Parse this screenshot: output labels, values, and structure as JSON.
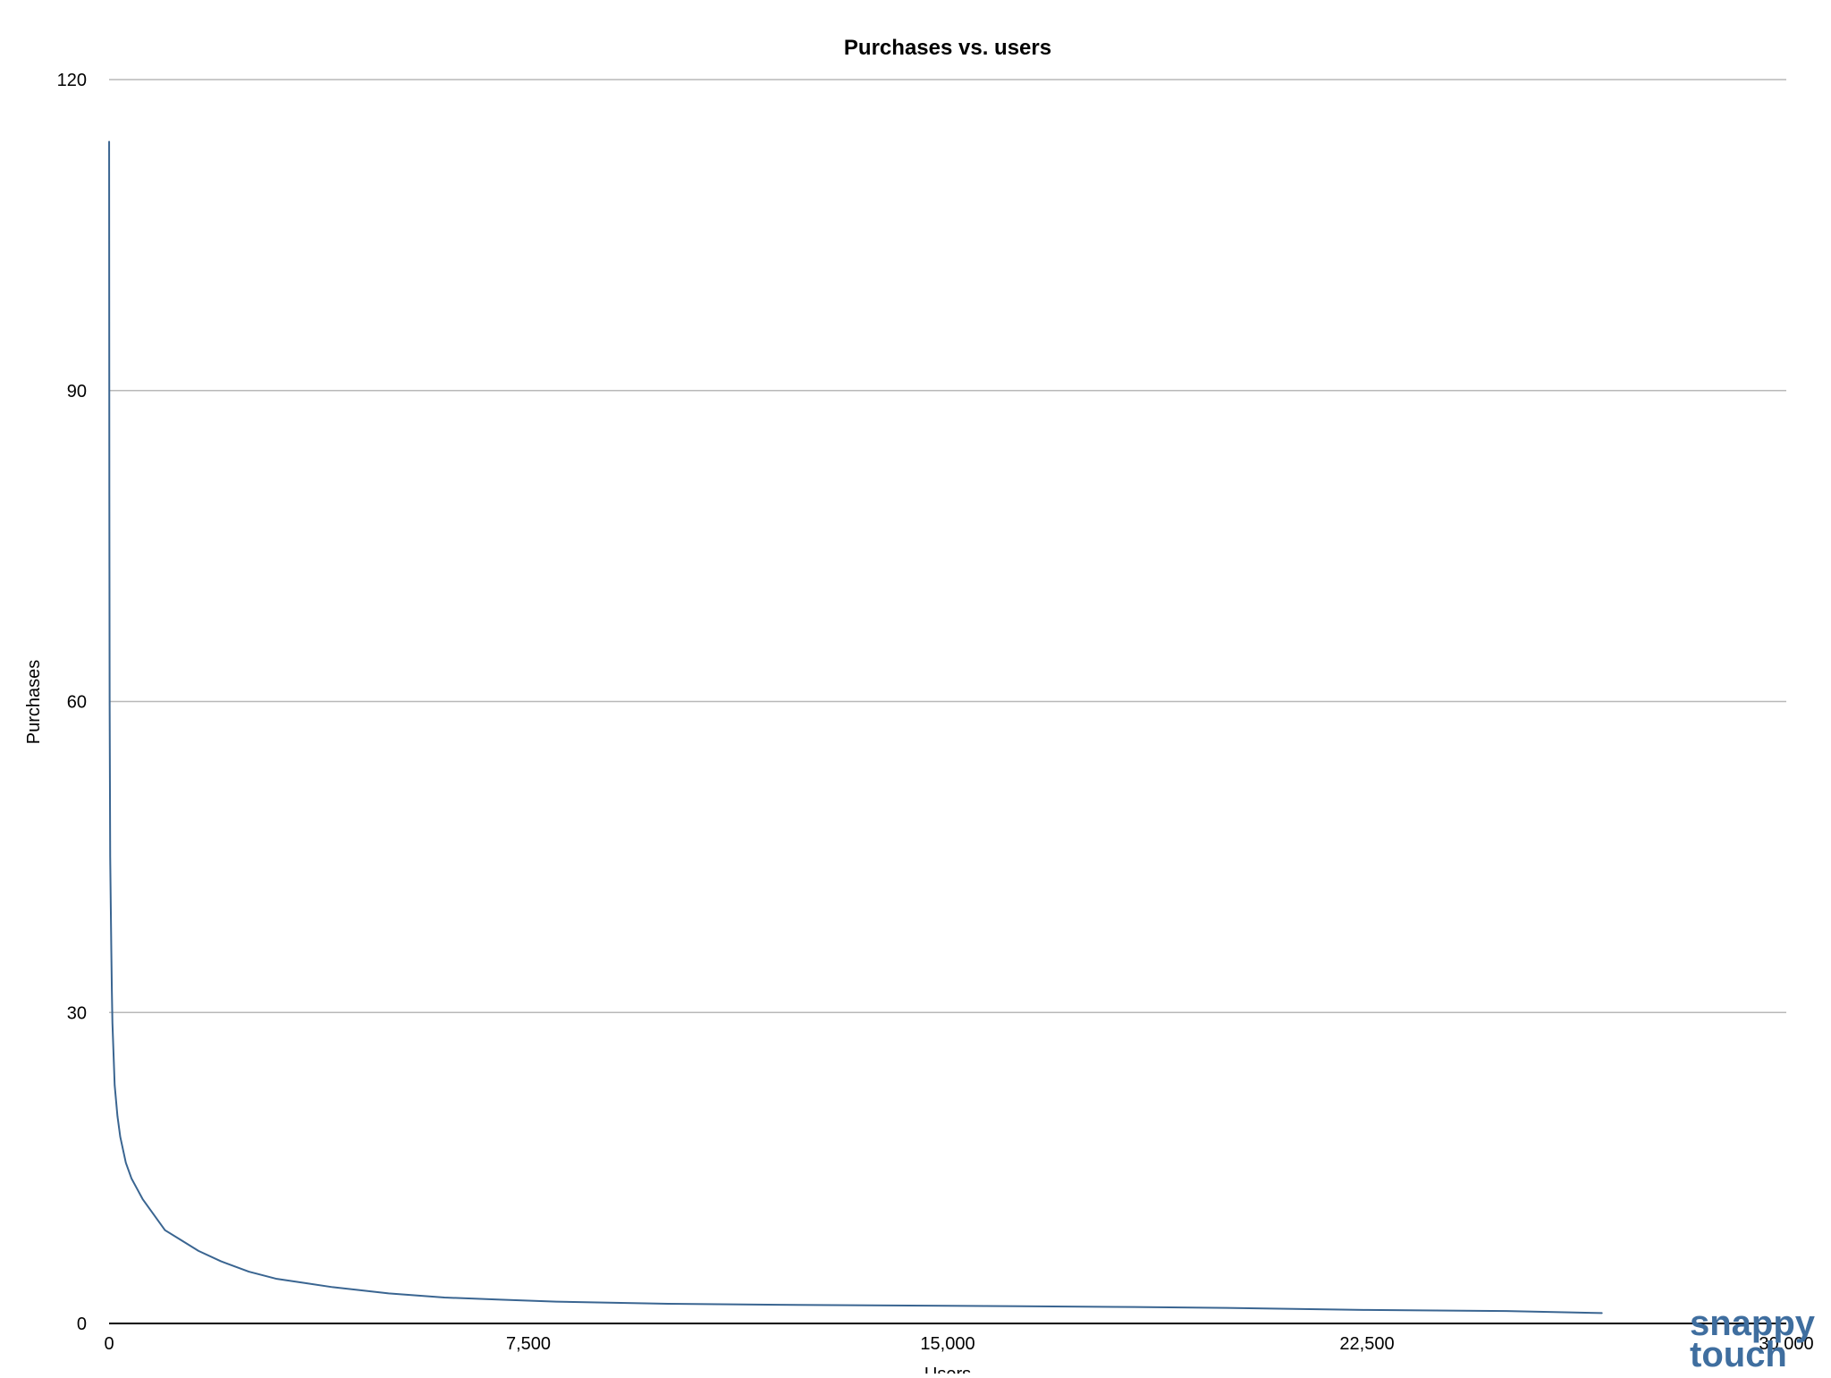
{
  "chart_data": {
    "type": "line",
    "title": "Purchases vs. users",
    "xlabel": "Users",
    "ylabel": "Purchases",
    "xlim": [
      0,
      30000
    ],
    "ylim": [
      0,
      120
    ],
    "x_ticks": [
      "0",
      "7,500",
      "15,000",
      "22,500",
      "30,000"
    ],
    "y_ticks": [
      "0",
      "30",
      "60",
      "90",
      "120"
    ],
    "grid": "horizontal",
    "legend": "none",
    "series": [
      {
        "color": "#3a6591",
        "x": [
          1,
          5,
          10,
          20,
          40,
          50,
          60,
          80,
          100,
          150,
          200,
          300,
          400,
          500,
          600,
          800,
          1000,
          1300,
          1600,
          2000,
          2500,
          3000,
          3500,
          4000,
          4500,
          5000,
          6000,
          7000,
          8000,
          10000,
          12000,
          15000,
          18000,
          20000,
          22500,
          25000,
          26700
        ],
        "y": [
          114,
          80,
          60,
          45,
          36,
          32,
          29,
          26,
          23,
          20,
          18,
          15.5,
          14,
          13,
          12,
          10.5,
          9,
          8,
          7,
          6,
          5,
          4.3,
          3.9,
          3.5,
          3.2,
          2.9,
          2.5,
          2.3,
          2.1,
          1.9,
          1.8,
          1.7,
          1.6,
          1.5,
          1.3,
          1.2,
          1.0
        ]
      }
    ]
  },
  "colors": {
    "line": "#3a6591",
    "grid": "#b8b8b8",
    "axis": "#000000",
    "watermark": "#3f6e9f"
  },
  "watermark": {
    "line1": "snappy",
    "line2": "touch"
  }
}
